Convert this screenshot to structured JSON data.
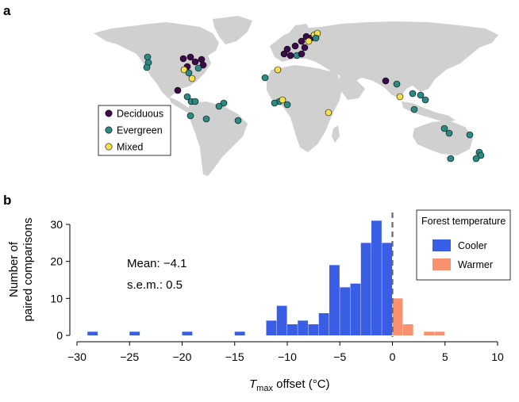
{
  "panels": {
    "a": "a",
    "b": "b"
  },
  "map": {
    "land_color": "#d0d0d0",
    "legend": [
      {
        "label": "Deciduous",
        "color": "#3c0a4a"
      },
      {
        "label": "Evergreen",
        "color": "#2b8a83"
      },
      {
        "label": "Mixed",
        "color": "#f4e04d"
      }
    ]
  },
  "stats": {
    "mean": "Mean: −4.1",
    "sem": "s.e.m.: 0.5"
  },
  "chart_data": {
    "type": "bar",
    "subtype": "histogram",
    "xlabel_main": "T",
    "xlabel_sub": "max",
    "xlabel_rest": " offset (°C)",
    "ylabel_line1": "Number of",
    "ylabel_line2": "paired comparisons",
    "xlim": [
      -31,
      10.5
    ],
    "ylim": [
      0,
      33
    ],
    "xticks": [
      "−30",
      "−25",
      "−20",
      "−15",
      "−10",
      "−5",
      "0",
      "5",
      "10"
    ],
    "xtick_values": [
      -30,
      -25,
      -20,
      -15,
      -10,
      -5,
      0,
      5,
      10
    ],
    "yticks": [
      "0",
      "10",
      "20",
      "30"
    ],
    "ytick_values": [
      0,
      10,
      20,
      30
    ],
    "bin_width": 1,
    "zero_line": 0,
    "legend_title": "Forest temperature",
    "legend_position": "top-right",
    "series": [
      {
        "name": "Cooler",
        "color": "#3a5de6",
        "bins": [
          {
            "x": -29,
            "count": 1
          },
          {
            "x": -25,
            "count": 1
          },
          {
            "x": -20,
            "count": 1
          },
          {
            "x": -15,
            "count": 1
          },
          {
            "x": -12,
            "count": 4
          },
          {
            "x": -11,
            "count": 8
          },
          {
            "x": -10,
            "count": 3
          },
          {
            "x": -9,
            "count": 4
          },
          {
            "x": -8,
            "count": 3
          },
          {
            "x": -7,
            "count": 6
          },
          {
            "x": -6,
            "count": 19
          },
          {
            "x": -5,
            "count": 13
          },
          {
            "x": -4,
            "count": 14
          },
          {
            "x": -3,
            "count": 25
          },
          {
            "x": -2,
            "count": 31
          },
          {
            "x": -1,
            "count": 25
          }
        ]
      },
      {
        "name": "Warmer",
        "color": "#f9906e",
        "bins": [
          {
            "x": 0,
            "count": 10
          },
          {
            "x": 1,
            "count": 3
          },
          {
            "x": 3,
            "count": 1
          },
          {
            "x": 4,
            "count": 1
          }
        ]
      }
    ]
  }
}
